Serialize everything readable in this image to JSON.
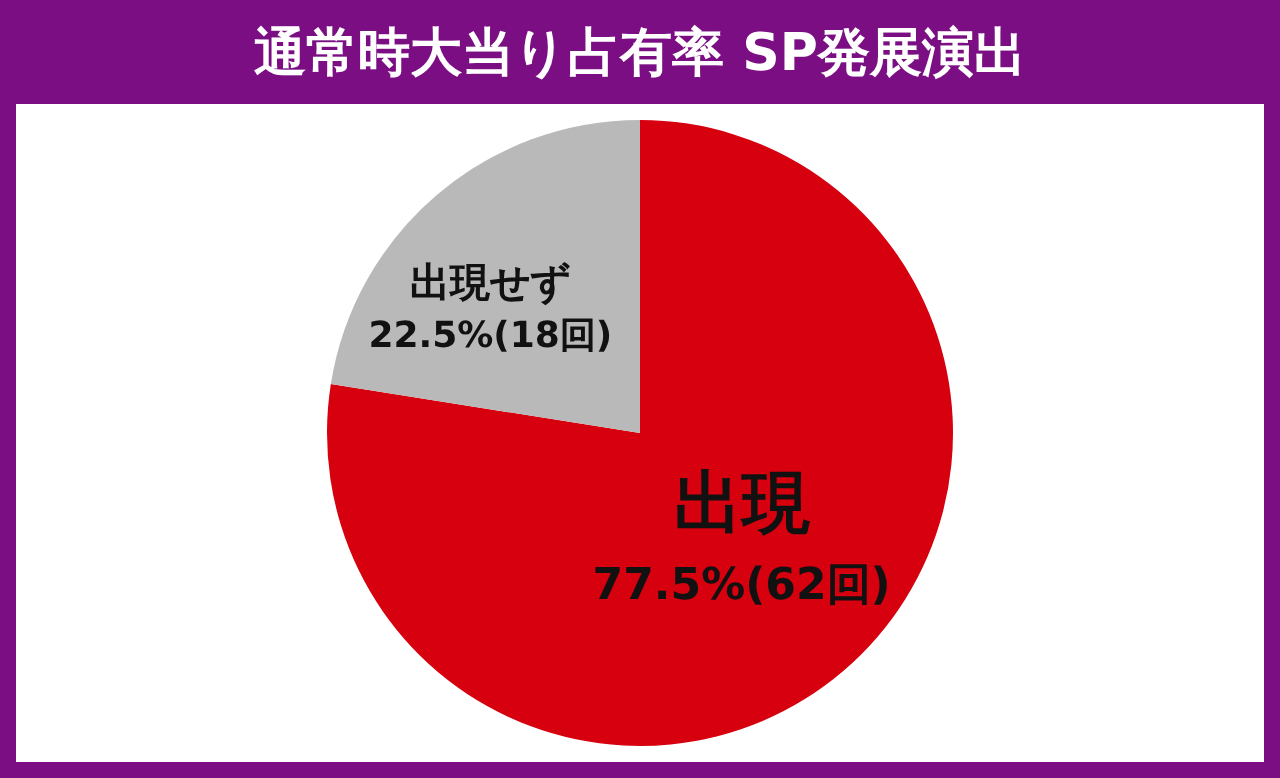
{
  "chart_data": {
    "type": "pie",
    "title": "通常時大当り占有率 SP発展演出",
    "categories": [
      "出現",
      "出現せず"
    ],
    "values": [
      77.5,
      22.5
    ],
    "value_labels": [
      "77.5%(62回)",
      "22.5%(18回)"
    ],
    "colors": [
      "#d7000f",
      "#b9b9b9"
    ],
    "legend": false
  }
}
